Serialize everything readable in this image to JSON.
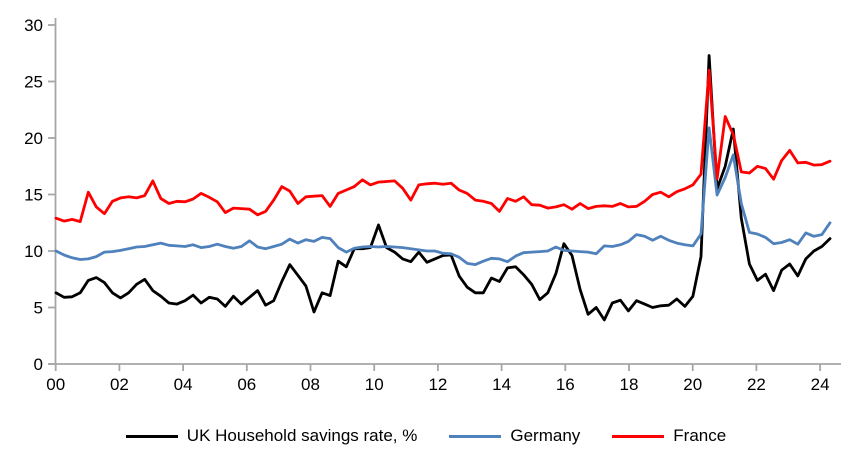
{
  "chart_data": {
    "type": "line",
    "title": "",
    "frequency": "quarterly",
    "x_start": "2000 Q1",
    "x_end": "2024 Q1",
    "x_tick_labels": [
      "00",
      "02",
      "04",
      "06",
      "08",
      "10",
      "12",
      "14",
      "16",
      "18",
      "20",
      "22",
      "24"
    ],
    "y_ticks": [
      0,
      5,
      10,
      15,
      20,
      25,
      30
    ],
    "ylim": [
      0,
      30
    ],
    "grid": false,
    "legend_position": "bottom",
    "axis_color": "#a6a6a6",
    "series": [
      {
        "name": "UK Household savings rate, %",
        "color": "#000000",
        "values": [
          6.3,
          5.9,
          5.95,
          6.3,
          7.4,
          7.65,
          7.2,
          6.3,
          5.85,
          6.3,
          7.05,
          7.5,
          6.5,
          6.0,
          5.4,
          5.3,
          5.6,
          6.1,
          5.4,
          5.9,
          5.75,
          5.1,
          6.0,
          5.3,
          5.9,
          6.5,
          5.2,
          5.6,
          7.3,
          8.8,
          7.85,
          6.9,
          4.6,
          6.3,
          6.05,
          9.1,
          8.6,
          10.2,
          10.2,
          10.3,
          12.3,
          10.3,
          9.9,
          9.3,
          9.05,
          9.9,
          9.0,
          9.3,
          9.6,
          9.65,
          7.8,
          6.8,
          6.3,
          6.3,
          7.6,
          7.3,
          8.5,
          8.6,
          7.9,
          7.05,
          5.7,
          6.3,
          8.0,
          10.65,
          9.6,
          6.6,
          4.4,
          5.0,
          3.9,
          5.4,
          5.65,
          4.7,
          5.6,
          5.3,
          5.0,
          5.15,
          5.2,
          5.75,
          5.1,
          6.0,
          9.5,
          27.3,
          15.5,
          17.5,
          20.8,
          12.9,
          8.85,
          7.4,
          7.95,
          6.5,
          8.3,
          8.85,
          7.8,
          9.3,
          10.0,
          10.4,
          11.1
        ]
      },
      {
        "name": "Germany",
        "color": "#4f81bd",
        "values": [
          10.0,
          9.65,
          9.4,
          9.25,
          9.3,
          9.5,
          9.9,
          9.95,
          10.05,
          10.2,
          10.35,
          10.4,
          10.55,
          10.7,
          10.5,
          10.45,
          10.4,
          10.55,
          10.3,
          10.4,
          10.6,
          10.4,
          10.25,
          10.4,
          10.9,
          10.35,
          10.2,
          10.4,
          10.6,
          11.05,
          10.7,
          11.0,
          10.85,
          11.2,
          11.1,
          10.3,
          9.9,
          10.25,
          10.35,
          10.4,
          10.35,
          10.4,
          10.35,
          10.3,
          10.2,
          10.1,
          10.0,
          10.0,
          9.8,
          9.75,
          9.45,
          8.9,
          8.8,
          9.1,
          9.35,
          9.3,
          9.05,
          9.55,
          9.85,
          9.9,
          9.95,
          10.0,
          10.35,
          10.05,
          10.0,
          9.95,
          9.9,
          9.75,
          10.45,
          10.4,
          10.55,
          10.85,
          11.45,
          11.3,
          10.95,
          11.3,
          10.95,
          10.7,
          10.55,
          10.45,
          11.5,
          20.9,
          14.95,
          16.5,
          18.5,
          14.2,
          11.65,
          11.5,
          11.2,
          10.65,
          10.75,
          11.0,
          10.6,
          11.6,
          11.3,
          11.45,
          12.5
        ]
      },
      {
        "name": "France",
        "color": "#ff0000",
        "values": [
          12.9,
          12.65,
          12.8,
          12.6,
          15.2,
          13.9,
          13.3,
          14.4,
          14.7,
          14.8,
          14.7,
          14.9,
          16.2,
          14.65,
          14.2,
          14.4,
          14.35,
          14.6,
          15.1,
          14.75,
          14.35,
          13.4,
          13.8,
          13.75,
          13.7,
          13.2,
          13.5,
          14.5,
          15.7,
          15.3,
          14.2,
          14.8,
          14.85,
          14.9,
          13.95,
          15.1,
          15.4,
          15.7,
          16.3,
          15.85,
          16.1,
          16.15,
          16.2,
          15.55,
          14.5,
          15.85,
          15.95,
          16.0,
          15.9,
          16.0,
          15.4,
          15.1,
          14.5,
          14.4,
          14.2,
          13.5,
          14.65,
          14.4,
          14.8,
          14.1,
          14.05,
          13.8,
          13.9,
          14.1,
          13.7,
          14.2,
          13.75,
          13.95,
          14.0,
          13.95,
          14.2,
          13.9,
          13.95,
          14.4,
          15.0,
          15.2,
          14.8,
          15.25,
          15.5,
          15.85,
          16.8,
          26.0,
          16.4,
          21.9,
          20.3,
          17.0,
          16.9,
          17.5,
          17.3,
          16.35,
          18.0,
          18.9,
          17.8,
          17.85,
          17.6,
          17.65,
          17.95
        ]
      }
    ]
  }
}
